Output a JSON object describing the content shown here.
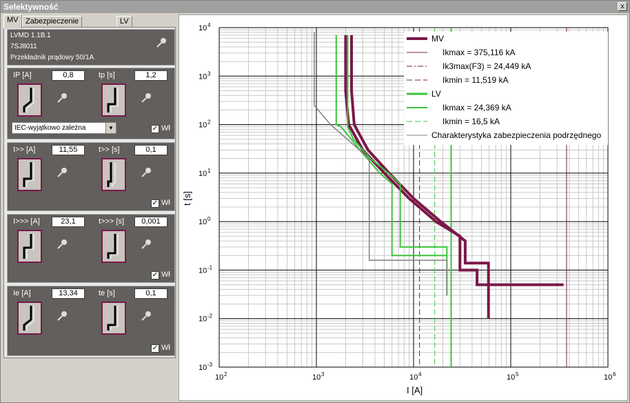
{
  "window": {
    "title": "Selektywność",
    "close_label": "x"
  },
  "tabs": [
    {
      "label": "MV",
      "active": true
    },
    {
      "label": "Zabezpieczenie nadrzędne",
      "active": false
    },
    {
      "label": "LV",
      "active": false
    }
  ],
  "device": {
    "line1": "LVMD 1.1B.1",
    "line2": "7SJ8011",
    "line3": "Przekładnik prądowy 50/1A"
  },
  "stage_ip": {
    "current_label": "IP  [A]",
    "current_value": "0,8",
    "time_label": "tp [s]",
    "time_value": "1,2",
    "characteristic": "IEC-wyjątkowo zależna",
    "enabled_label": "Wł",
    "enabled": true
  },
  "stage_i2": {
    "current_label": "I>> [A]",
    "current_value": "11,55",
    "time_label": "t>> [s]",
    "time_value": "0,1",
    "enabled_label": "Wł",
    "enabled": true
  },
  "stage_i3": {
    "current_label": "I>>> [A]",
    "current_value": "23,1",
    "time_label": "t>>> [s]",
    "time_value": "0,001",
    "enabled_label": "Wł",
    "enabled": true
  },
  "stage_ie": {
    "current_label": "Ie [A]",
    "current_value": "13,34",
    "time_label": "te [s]",
    "time_value": "0,1",
    "enabled_label": "Wł",
    "enabled": true
  },
  "colors": {
    "mv": "#7a1848",
    "lv": "#3ac43a",
    "downstream": "#808080",
    "panel": "#625f5c"
  },
  "chart_data": {
    "type": "line",
    "xscale": "log",
    "yscale": "log",
    "xlabel": "I [A]",
    "ylabel": "t [s]",
    "xlim": [
      100,
      1000000
    ],
    "ylim": [
      0.001,
      10000
    ],
    "xticks": [
      {
        "base": "10",
        "exp": "2",
        "v": 100
      },
      {
        "base": "10",
        "exp": "3",
        "v": 1000
      },
      {
        "base": "10",
        "exp": "4",
        "v": 10000
      },
      {
        "base": "10",
        "exp": "5",
        "v": 100000
      },
      {
        "base": "10",
        "exp": "6",
        "v": 1000000
      }
    ],
    "yticks": [
      {
        "base": "10",
        "exp": "-3",
        "v": 0.001
      },
      {
        "base": "10",
        "exp": "-2",
        "v": 0.01
      },
      {
        "base": "10",
        "exp": "-1",
        "v": 0.1
      },
      {
        "base": "10",
        "exp": "0",
        "v": 1
      },
      {
        "base": "10",
        "exp": "1",
        "v": 10
      },
      {
        "base": "10",
        "exp": "2",
        "v": 100
      },
      {
        "base": "10",
        "exp": "3",
        "v": 1000
      },
      {
        "base": "10",
        "exp": "4",
        "v": 10000
      }
    ],
    "grid": true,
    "legend_position": "top-right",
    "legend": [
      {
        "text": "MV",
        "style": "mv-thick"
      },
      {
        "text": "Ikmax =  375,116 kA",
        "style": "mv-solid"
      },
      {
        "text": "Ik3max(F3) = 24,449 kA",
        "style": "mv-dashdot"
      },
      {
        "text": "Ikmin =  11,519 kA",
        "style": "mv-dash"
      },
      {
        "text": "LV",
        "style": "lv-thick"
      },
      {
        "text": "Ikmax =  24,369 kA",
        "style": "lv-solid"
      },
      {
        "text": "Ikmin =  16,5 kA",
        "style": "lv-dash"
      },
      {
        "text": "Charakterystyka zabezpieczenia podrzędnego",
        "style": "grey-solid"
      }
    ],
    "series": [
      {
        "name": "MV",
        "role": "mv-band-left",
        "points": [
          [
            2000,
            7000
          ],
          [
            2000,
            500
          ],
          [
            2150,
            100
          ],
          [
            3000,
            30
          ],
          [
            5000,
            10
          ],
          [
            9000,
            3
          ],
          [
            17000,
            1
          ],
          [
            30000,
            0.5
          ],
          [
            30000,
            0.1
          ],
          [
            45000,
            0.1
          ],
          [
            45000,
            0.05
          ],
          [
            350000,
            0.05
          ]
        ]
      },
      {
        "role": "mv-band-right",
        "points": [
          [
            2300,
            7000
          ],
          [
            2300,
            500
          ],
          [
            2450,
            100
          ],
          [
            3400,
            30
          ],
          [
            5600,
            10
          ],
          [
            10000,
            3
          ],
          [
            19000,
            1
          ],
          [
            34000,
            0.4
          ],
          [
            34000,
            0.14
          ],
          [
            59000,
            0.14
          ],
          [
            59000,
            0.01
          ]
        ]
      },
      {
        "name": "LV",
        "role": "lv-band-left",
        "points": [
          [
            1600,
            7000
          ],
          [
            1600,
            100
          ],
          [
            1800,
            90
          ],
          [
            2800,
            30
          ],
          [
            4500,
            10
          ],
          [
            6000,
            6
          ],
          [
            6000,
            0.2
          ],
          [
            22000,
            0.2
          ]
        ]
      },
      {
        "role": "lv-band-right",
        "points": [
          [
            2100,
            7000
          ],
          [
            2100,
            90
          ],
          [
            2400,
            50
          ],
          [
            3600,
            20
          ],
          [
            5500,
            10
          ],
          [
            7300,
            6
          ],
          [
            7300,
            0.3
          ],
          [
            22000,
            0.3
          ],
          [
            22000,
            0.03
          ]
        ]
      },
      {
        "name": "Charakterystyka zabezpieczenia podrzędnego",
        "role": "grey",
        "points": [
          [
            950,
            8000
          ],
          [
            950,
            250
          ],
          [
            1400,
            100
          ],
          [
            3500,
            20
          ],
          [
            3500,
            0.16
          ],
          [
            22000,
            0.16
          ],
          [
            22000,
            0.03
          ]
        ]
      }
    ],
    "vlines": [
      {
        "x": 375116,
        "style": "mv-solid"
      },
      {
        "x": 11519,
        "style": "mv-dash"
      },
      {
        "x": 24369,
        "style": "lv-solid"
      },
      {
        "x": 16500,
        "style": "lv-dash"
      }
    ]
  }
}
